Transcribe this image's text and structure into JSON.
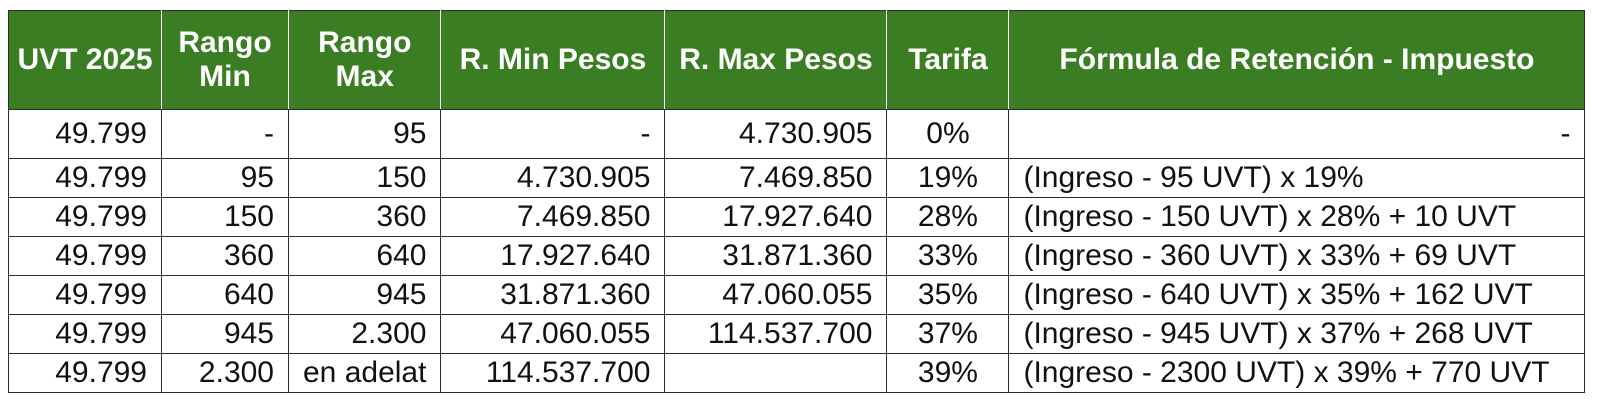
{
  "table": {
    "headers": [
      "UVT 2025",
      "Rango Min",
      "Rango Max",
      "R. Min Pesos",
      "R. Max Pesos",
      "Tarifa",
      "Fórmula de Retención - Impuesto"
    ],
    "rows": [
      [
        "49.799",
        "-",
        "95",
        "-",
        "4.730.905",
        "0%",
        "-"
      ],
      [
        "49.799",
        "95",
        "150",
        "4.730.905",
        "7.469.850",
        "19%",
        "(Ingreso - 95 UVT) x 19%"
      ],
      [
        "49.799",
        "150",
        "360",
        "7.469.850",
        "17.927.640",
        "28%",
        "(Ingreso - 150 UVT) x 28% + 10 UVT"
      ],
      [
        "49.799",
        "360",
        "640",
        "17.927.640",
        "31.871.360",
        "33%",
        "(Ingreso - 360 UVT) x 33% + 69 UVT"
      ],
      [
        "49.799",
        "640",
        "945",
        "31.871.360",
        "47.060.055",
        "35%",
        "(Ingreso - 640 UVT) x 35% + 162 UVT"
      ],
      [
        "49.799",
        "945",
        "2.300",
        "47.060.055",
        "114.537.700",
        "37%",
        "(Ingreso - 945 UVT) x 37% + 268 UVT"
      ],
      [
        "49.799",
        "2.300",
        "en adelat",
        "114.537.700",
        "",
        "39%",
        "(Ingreso - 2300 UVT) x 39% + 770 UVT"
      ]
    ]
  },
  "colors": {
    "header_bg": "#3a7d22",
    "header_text": "#ffffff",
    "grid": "#2c2c2c"
  }
}
